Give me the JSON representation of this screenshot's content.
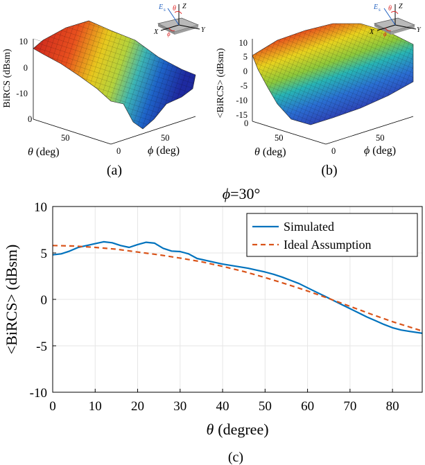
{
  "panels": {
    "a": {
      "caption": "(a)",
      "zlabel": "BiRCS (dBsm)",
      "zticks": [
        "10",
        "0",
        "-10"
      ],
      "xlabel_sym": "θ",
      "xlabel_unit": "(deg)",
      "ylabel_sym": "ϕ",
      "ylabel_unit": "(deg)",
      "xticks": [
        "0",
        "50"
      ],
      "yticks": [
        "0",
        "50"
      ],
      "inset_labels": [
        "E",
        "s",
        "θ",
        "Z",
        "X",
        "Y",
        "ϕ"
      ]
    },
    "b": {
      "caption": "(b)",
      "zlabel": "<BiRCS> (dBsm)",
      "zticks": [
        "10",
        "5",
        "0",
        "-5",
        "-10",
        "-15"
      ],
      "xlabel_sym": "θ",
      "xlabel_unit": "(deg)",
      "ylabel_sym": "ϕ",
      "ylabel_unit": "(deg)",
      "xticks": [
        "0",
        "50"
      ],
      "yticks": [
        "0",
        "50"
      ],
      "inset_labels": [
        "E",
        "s",
        "θ",
        "Z",
        "X",
        "Y",
        "ϕ"
      ]
    },
    "c": {
      "caption": "(c)"
    }
  },
  "colors": {
    "simulated": "#0072BD",
    "ideal": "#D95319",
    "grid": "#e6e6e6"
  },
  "chart_data": {
    "type": "line",
    "title_sym": "ϕ",
    "title_val": "=30°",
    "xlabel_sym": "θ",
    "xlabel_unit": "(degree)",
    "ylabel": "<BiRCS> (dBsm)",
    "xlim": [
      0,
      87
    ],
    "ylim": [
      -10,
      10
    ],
    "xticks": [
      0,
      10,
      20,
      30,
      40,
      50,
      60,
      70,
      80
    ],
    "yticks": [
      -10,
      -5,
      0,
      5,
      10
    ],
    "grid": true,
    "legend_position": "top-right",
    "series": [
      {
        "name": "Simulated",
        "style": "solid",
        "x": [
          0,
          2,
          4,
          6,
          8,
          10,
          12,
          14,
          16,
          18,
          20,
          22,
          24,
          26,
          28,
          30,
          32,
          34,
          36,
          38,
          40,
          42,
          44,
          46,
          48,
          50,
          52,
          54,
          56,
          58,
          60,
          62,
          64,
          66,
          68,
          70,
          72,
          74,
          76,
          78,
          80,
          82,
          84,
          87
        ],
        "y": [
          4.8,
          4.9,
          5.2,
          5.6,
          5.8,
          6.0,
          6.2,
          6.1,
          5.8,
          5.6,
          5.9,
          6.15,
          6.05,
          5.5,
          5.2,
          5.15,
          4.9,
          4.4,
          4.2,
          4.0,
          3.8,
          3.65,
          3.5,
          3.35,
          3.15,
          2.95,
          2.7,
          2.4,
          2.05,
          1.7,
          1.25,
          0.8,
          0.35,
          -0.1,
          -0.55,
          -1.0,
          -1.45,
          -1.9,
          -2.3,
          -2.7,
          -3.05,
          -3.3,
          -3.45,
          -3.65
        ]
      },
      {
        "name": "Ideal Assumption",
        "style": "dashed",
        "x": [
          0,
          5,
          10,
          15,
          20,
          25,
          30,
          35,
          40,
          45,
          50,
          55,
          60,
          65,
          70,
          75,
          80,
          87
        ],
        "y": [
          5.8,
          5.75,
          5.6,
          5.4,
          5.1,
          4.8,
          4.45,
          4.05,
          3.55,
          3.0,
          2.35,
          1.65,
          0.9,
          0.1,
          -0.75,
          -1.6,
          -2.4,
          -3.4
        ]
      }
    ]
  }
}
